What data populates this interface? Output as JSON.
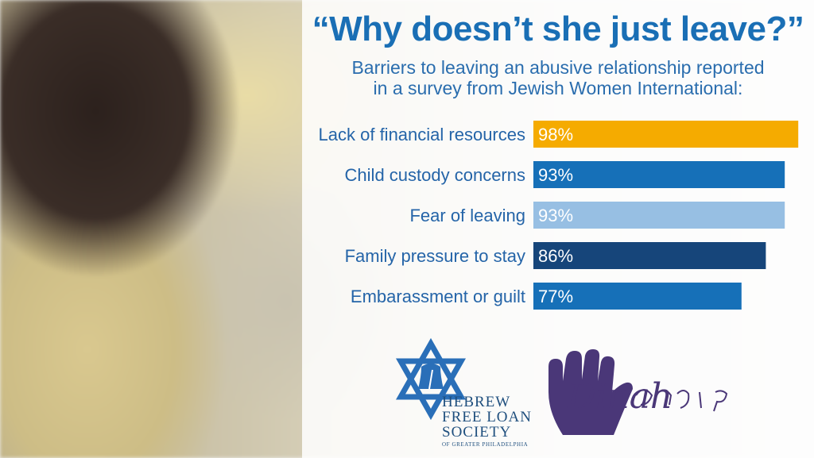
{
  "header": {
    "title": "“Why doesn’t she just leave?”",
    "subtitle_line1": "Barriers to leaving an abusive relationship reported",
    "subtitle_line2": "in a survey from Jewish Women International:"
  },
  "chart_data": {
    "type": "bar",
    "orientation": "horizontal",
    "categories": [
      "Lack of financial resources",
      "Child custody concerns",
      "Fear of leaving",
      "Family pressure to stay",
      "Embarassment or guilt"
    ],
    "values": [
      98,
      93,
      93,
      86,
      77
    ],
    "value_labels": [
      "98%",
      "93%",
      "93%",
      "86%",
      "77%"
    ],
    "bar_colors": [
      "#f5ab00",
      "#1670b8",
      "#97bfe3",
      "#16457a",
      "#1670b8"
    ],
    "xlim": [
      0,
      100
    ],
    "grid": false,
    "legend": "none"
  },
  "logos": {
    "hfls": {
      "line1": "HEBREW",
      "line2": "FREE LOAN",
      "line3": "SOCIETY",
      "line4": "OF GREATER PHILADELPHIA"
    },
    "dinah": {
      "wordmark": "Dinah"
    }
  },
  "colors": {
    "title_blue": "#1a6fb5",
    "text_blue": "#2464a8",
    "hfls_blue": "#2a6fb8",
    "dinah_purple": "#4a3778"
  }
}
